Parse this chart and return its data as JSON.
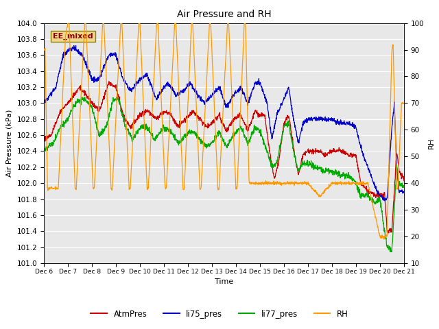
{
  "title": "Air Pressure and RH",
  "ylabel_left": "Air Pressure (kPa)",
  "ylabel_right": "RH",
  "xlabel": "Time",
  "annotation": "EE_mixed",
  "ylim_left": [
    101.0,
    104.0
  ],
  "ylim_right": [
    10,
    100
  ],
  "yticks_left": [
    101.0,
    101.2,
    101.4,
    101.6,
    101.8,
    102.0,
    102.2,
    102.4,
    102.6,
    102.8,
    103.0,
    103.2,
    103.4,
    103.6,
    103.8,
    104.0
  ],
  "yticks_right": [
    10,
    20,
    30,
    40,
    50,
    60,
    70,
    80,
    90,
    100
  ],
  "xtick_labels": [
    "Dec 6",
    "Dec 7",
    "Dec 8",
    "Dec 9",
    "Dec 10",
    "Dec 11",
    "Dec 12",
    "Dec 13",
    "Dec 14",
    "Dec 15",
    "Dec 16",
    "Dec 17",
    "Dec 18",
    "Dec 19",
    "Dec 20",
    "Dec 21"
  ],
  "colors": {
    "AtmPres": "#cc0000",
    "li75_pres": "#0000cc",
    "li77_pres": "#00aa00",
    "RH": "#ff9900"
  },
  "background_color": "#e8e8e8",
  "grid_color": "#ffffff",
  "legend_labels": [
    "AtmPres",
    "li75_pres",
    "li77_pres",
    "RH"
  ],
  "figsize": [
    6.4,
    4.8
  ],
  "dpi": 100
}
